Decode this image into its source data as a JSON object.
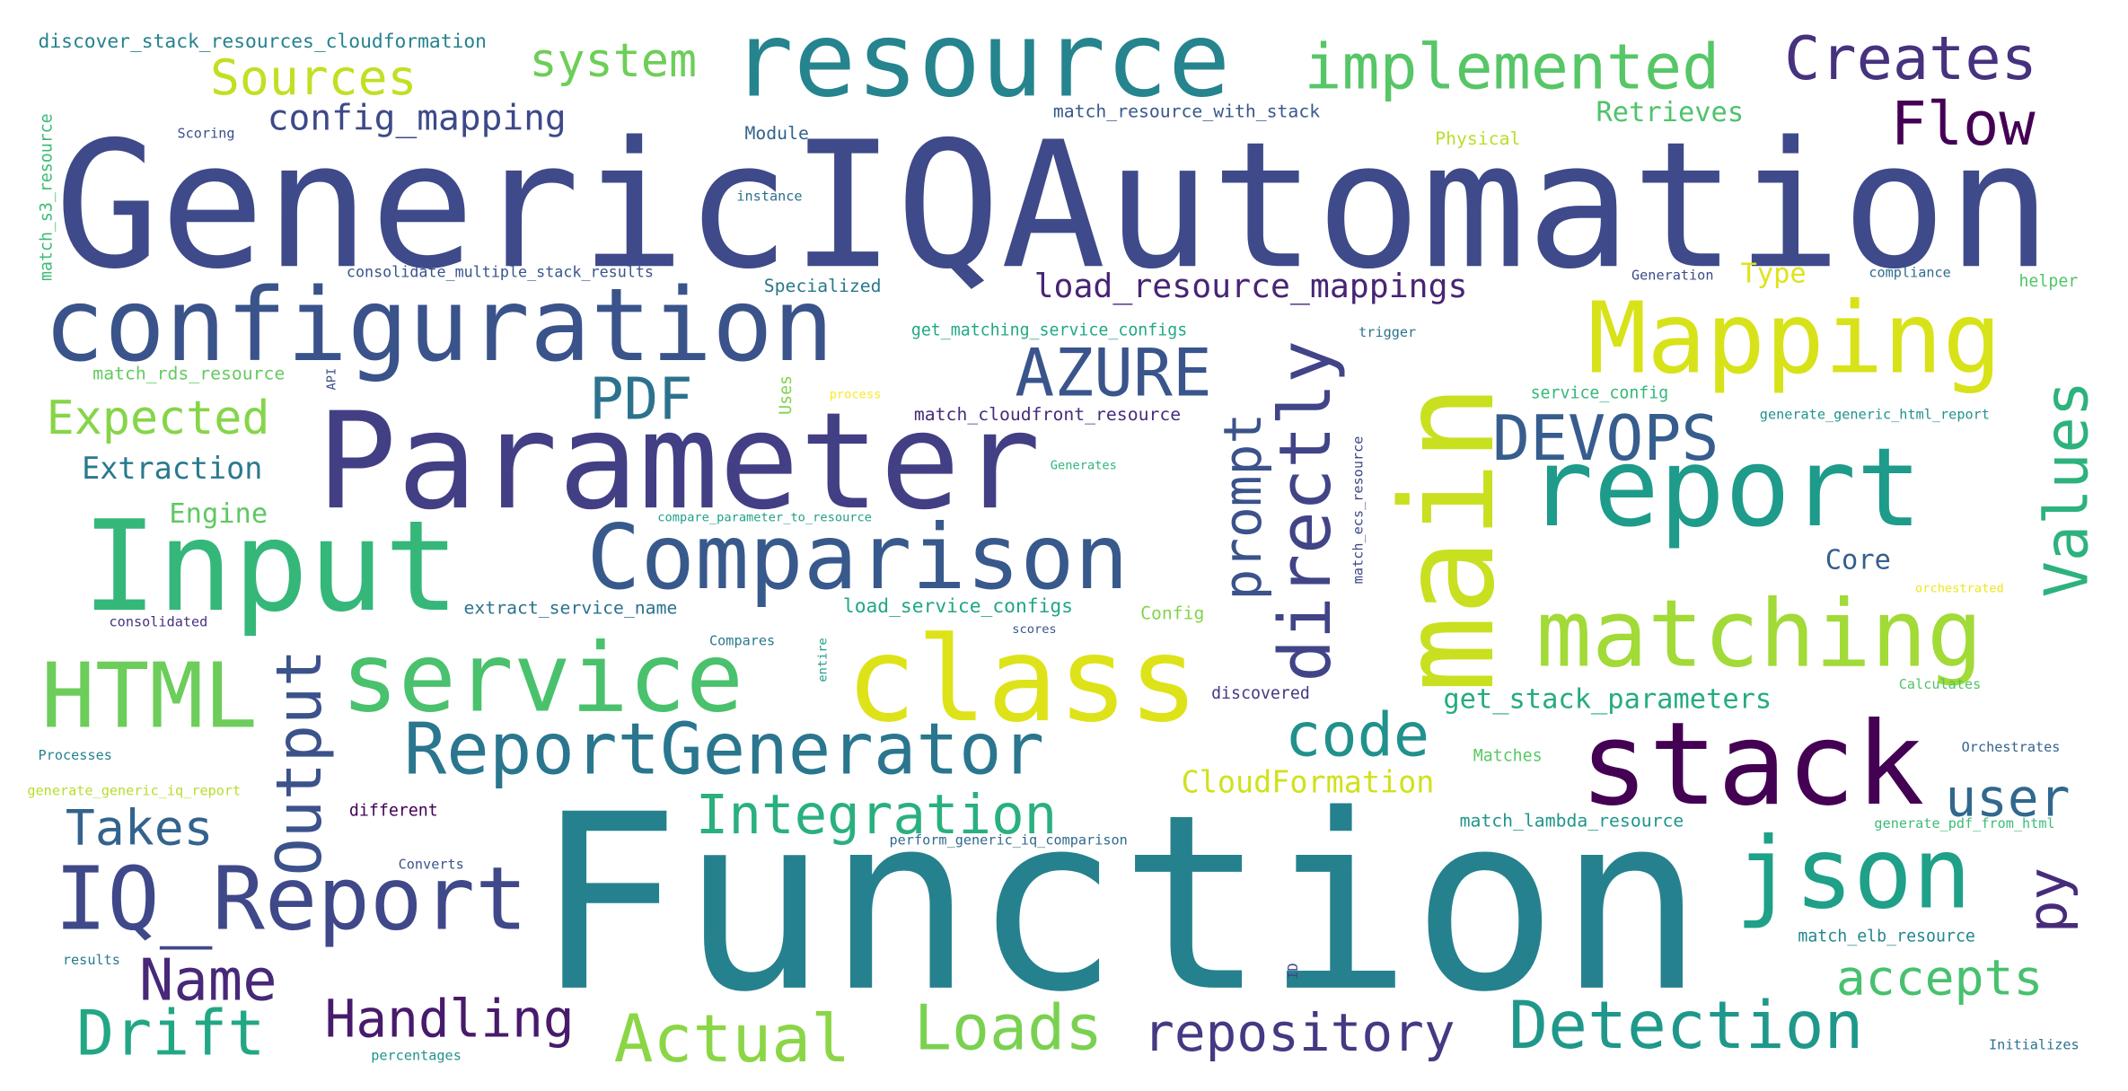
{
  "colors": {
    "background": "#ffffff",
    "palette": "viridis"
  },
  "words": [
    {
      "text": "GenericIQAutomation",
      "color": "#3e4a89"
    },
    {
      "text": "Function",
      "color": "#26818e"
    },
    {
      "text": "Parameter",
      "color": "#423f85"
    },
    {
      "text": "configuration",
      "color": "#3a538b"
    },
    {
      "text": "resource",
      "color": "#25848e"
    },
    {
      "text": "main",
      "color": "#c8e020"
    },
    {
      "text": "Input",
      "color": "#35b779"
    },
    {
      "text": "class",
      "color": "#dde318"
    },
    {
      "text": "Comparison",
      "color": "#38598c"
    },
    {
      "text": "report",
      "color": "#1e9b8a"
    },
    {
      "text": "stack",
      "color": "#440154"
    },
    {
      "text": "service",
      "color": "#4ac16d"
    },
    {
      "text": "matching",
      "color": "#a2da37"
    },
    {
      "text": "Mapping",
      "color": "#d8e219"
    },
    {
      "text": "ReportGenerator",
      "color": "#2a768e"
    },
    {
      "text": "IQ_Report",
      "color": "#3f4889"
    },
    {
      "text": "json",
      "color": "#1fa088"
    },
    {
      "text": "HTML",
      "color": "#6ccd5a"
    },
    {
      "text": "implemented",
      "color": "#56c667"
    },
    {
      "text": "Creates",
      "color": "#46327e"
    },
    {
      "text": "directly",
      "color": "#414487"
    },
    {
      "text": "Output",
      "color": "#3b528b"
    },
    {
      "text": "AZURE",
      "color": "#3a548c"
    },
    {
      "text": "DEVOPS",
      "color": "#365d8d"
    },
    {
      "text": "Values",
      "color": "#2db27d"
    },
    {
      "text": "Detection",
      "color": "#1f988b"
    },
    {
      "text": "Drift",
      "color": "#22a785"
    },
    {
      "text": "Actual",
      "color": "#8bd646"
    },
    {
      "text": "Loads",
      "color": "#7ad151"
    },
    {
      "text": "Integration",
      "color": "#2ab07f"
    },
    {
      "text": "repository",
      "color": "#443983"
    },
    {
      "text": "Handling",
      "color": "#481a6c"
    },
    {
      "text": "Name",
      "color": "#482878"
    },
    {
      "text": "Flow",
      "color": "#440154"
    },
    {
      "text": "code",
      "color": "#21918c"
    },
    {
      "text": "user",
      "color": "#31688e"
    },
    {
      "text": "accepts",
      "color": "#48c16e"
    },
    {
      "text": "prompt",
      "color": "#3b528b"
    },
    {
      "text": "Takes",
      "color": "#33638d"
    },
    {
      "text": "PDF",
      "color": "#2c728e"
    },
    {
      "text": "Sources",
      "color": "#c2df23"
    },
    {
      "text": "system",
      "color": "#6ece58"
    },
    {
      "text": "Expected",
      "color": "#86d549"
    },
    {
      "text": "py",
      "color": "#472c7a"
    },
    {
      "text": "load_resource_mappings",
      "color": "#482475"
    },
    {
      "text": "config_mapping",
      "color": "#3e4989"
    },
    {
      "text": "get_stack_parameters",
      "color": "#25ab82"
    },
    {
      "text": "CloudFormation",
      "color": "#d0e11c"
    },
    {
      "text": "Extraction",
      "color": "#29798e"
    },
    {
      "text": "Engine",
      "color": "#5ec962"
    },
    {
      "text": "Retrieves",
      "color": "#4ec36b"
    },
    {
      "text": "Core",
      "color": "#355f8d"
    },
    {
      "text": "Type",
      "color": "#dfe318"
    },
    {
      "text": "discover_stack_resources_cloudformation",
      "color": "#26828e"
    },
    {
      "text": "match_s3_resource",
      "color": "#3bbb75"
    },
    {
      "text": "match_resource_with_stack",
      "color": "#38588c"
    },
    {
      "text": "Scoring",
      "color": "#3d4d8a"
    },
    {
      "text": "Module",
      "color": "#33638d"
    },
    {
      "text": "Physical",
      "color": "#b8de29"
    },
    {
      "text": "instance",
      "color": "#2e6f8e"
    },
    {
      "text": "consolidate_multiple_stack_results",
      "color": "#39558c"
    },
    {
      "text": "Specialized",
      "color": "#2a788e"
    },
    {
      "text": "Generation",
      "color": "#3e4a89"
    },
    {
      "text": "compliance",
      "color": "#2f6b8e"
    },
    {
      "text": "helper",
      "color": "#52c569"
    },
    {
      "text": "get_matching_service_configs",
      "color": "#22a884"
    },
    {
      "text": "trigger",
      "color": "#2c738e"
    },
    {
      "text": "match_rds_resource",
      "color": "#63cb5f"
    },
    {
      "text": "API",
      "color": "#3b528b"
    },
    {
      "text": "Uses",
      "color": "#7fd34e"
    },
    {
      "text": "process",
      "color": "#fde725"
    },
    {
      "text": "match_cloudfront_resource",
      "color": "#472d7b"
    },
    {
      "text": "service_config",
      "color": "#35b779"
    },
    {
      "text": "generate_generic_html_report",
      "color": "#20928c"
    },
    {
      "text": "match_ecs_resource",
      "color": "#3e4989"
    },
    {
      "text": "Generates",
      "color": "#2fb47c"
    },
    {
      "text": "compare_parameter_to_resource",
      "color": "#1f9f88"
    },
    {
      "text": "extract_service_name",
      "color": "#2d718e"
    },
    {
      "text": "load_service_configs",
      "color": "#21a685"
    },
    {
      "text": "Config",
      "color": "#84d44b"
    },
    {
      "text": "orchestrated",
      "color": "#f1e51d"
    },
    {
      "text": "consolidated",
      "color": "#46327e"
    },
    {
      "text": "scores",
      "color": "#39568c"
    },
    {
      "text": "entire",
      "color": "#1fa188"
    },
    {
      "text": "Compares",
      "color": "#2a788e"
    },
    {
      "text": "discovered",
      "color": "#443a83"
    },
    {
      "text": "Calculates",
      "color": "#4fc46a"
    },
    {
      "text": "Processes",
      "color": "#26828e"
    },
    {
      "text": "Matches",
      "color": "#5ac864"
    },
    {
      "text": "Orchestrates",
      "color": "#33638d"
    },
    {
      "text": "generate_generic_iq_report",
      "color": "#b5de2b"
    },
    {
      "text": "different",
      "color": "#440154"
    },
    {
      "text": "match_lambda_resource",
      "color": "#1f968b"
    },
    {
      "text": "generate_pdf_from_html",
      "color": "#3dbc74"
    },
    {
      "text": "Converts",
      "color": "#3a548c"
    },
    {
      "text": "perform_generic_iq_comparison",
      "color": "#31688e"
    },
    {
      "text": "match_elb_resource",
      "color": "#24878e"
    },
    {
      "text": "results",
      "color": "#2a788e"
    },
    {
      "text": "ID",
      "color": "#3f4889"
    },
    {
      "text": "percentages",
      "color": "#20928c"
    },
    {
      "text": "Initializes",
      "color": "#2d708e"
    }
  ]
}
